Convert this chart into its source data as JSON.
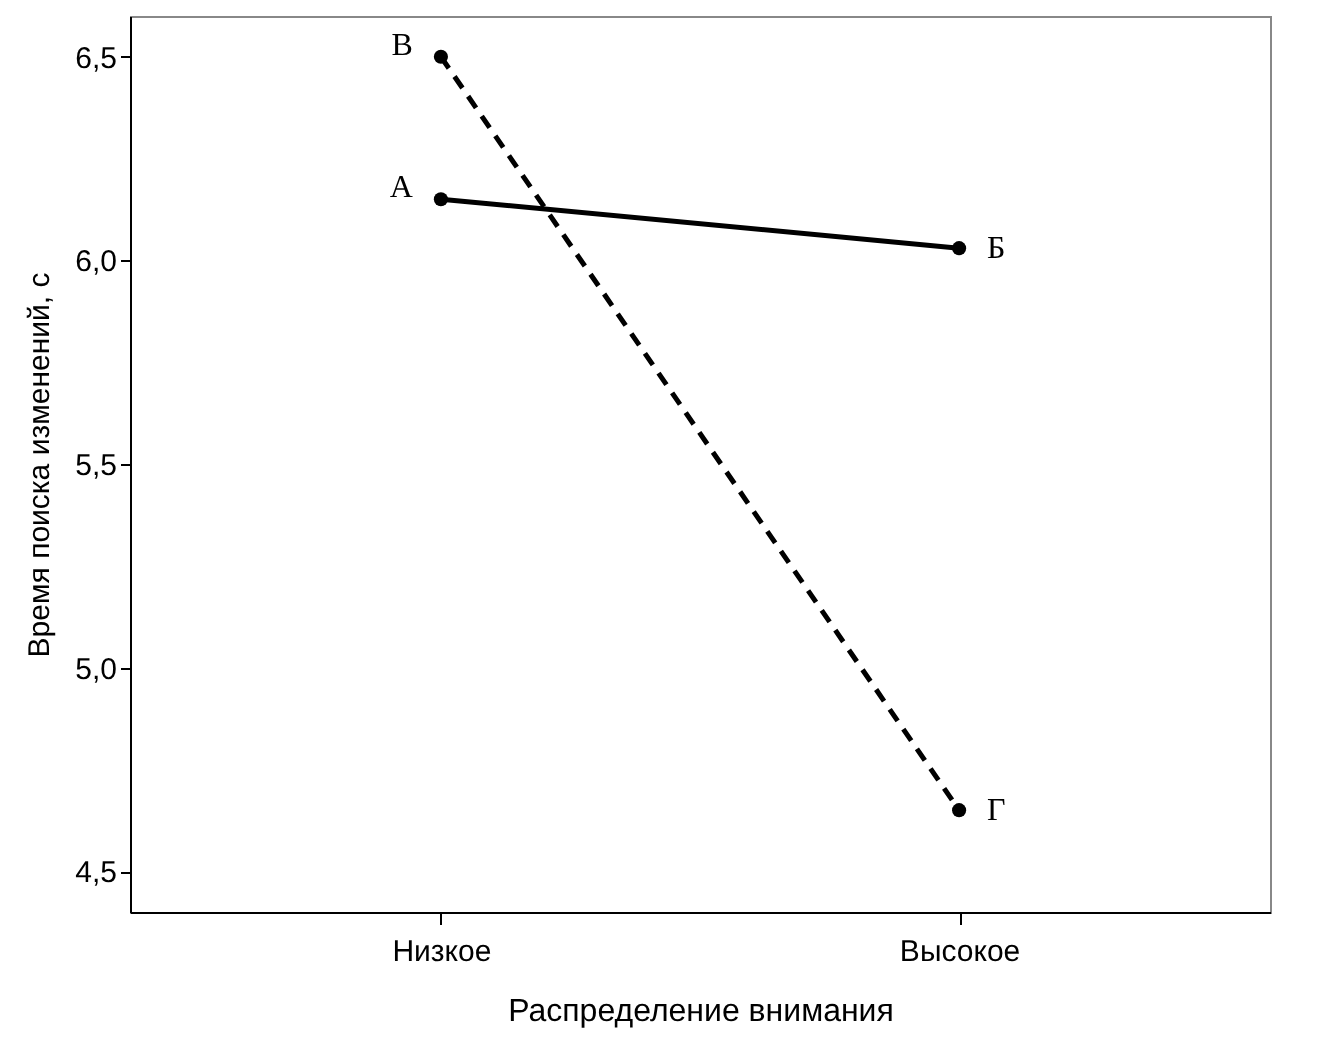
{
  "chart_data": {
    "type": "line",
    "xlabel": "Распределение внимания",
    "ylabel": "Время поиска изменений, с",
    "categories": [
      "Низкое",
      "Высокое"
    ],
    "series": [
      {
        "color": "#000000",
        "line_style": "solid",
        "values": [
          6.15,
          6.03
        ]
      },
      {
        "color": "#000000",
        "line_style": "dashed",
        "values": [
          6.5,
          4.65
        ]
      }
    ],
    "ylim": [
      4.4,
      6.6
    ],
    "yticks": [
      {
        "value": 4.5,
        "label": "4,5"
      },
      {
        "value": 5.0,
        "label": "5,0"
      },
      {
        "value": 5.5,
        "label": "5,5"
      },
      {
        "value": 6.0,
        "label": "6,0"
      },
      {
        "value": 6.5,
        "label": "6,5"
      }
    ],
    "marker": "circle",
    "grid": false,
    "annotations": [
      {
        "text": "А",
        "x": "Низкое",
        "y": 6.15
      },
      {
        "text": "Б",
        "x": "Высокое",
        "y": 6.03
      },
      {
        "text": "В",
        "x": "Низкое",
        "y": 6.5
      },
      {
        "text": "Г",
        "x": "Высокое",
        "y": 4.65
      }
    ]
  }
}
